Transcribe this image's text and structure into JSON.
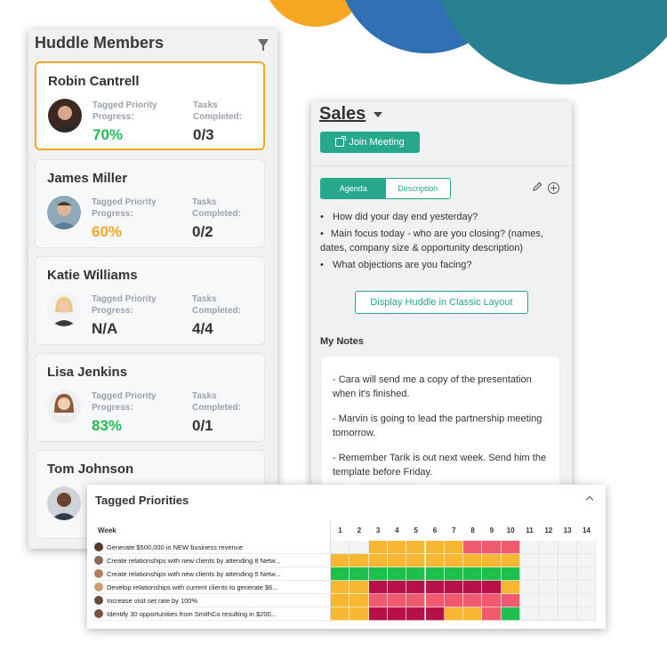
{
  "colors": {
    "accent": "#26a88c",
    "selected_border": "#f5a623",
    "good": "#27b855",
    "warn": "#f5a623"
  },
  "members": {
    "title": "Huddle Members",
    "cards": [
      {
        "name": "Robin Cantrell",
        "priority_label_1": "Tagged Priority",
        "priority_label_2": "Progress:",
        "priority_value": "70%",
        "tasks_label_1": "Tasks",
        "tasks_label_2": "Completed:",
        "tasks_value": "0/3"
      },
      {
        "name": "James Miller",
        "priority_label_1": "Tagged Priority",
        "priority_label_2": "Progress:",
        "priority_value": "60%",
        "tasks_label_1": "Tasks",
        "tasks_label_2": "Completed:",
        "tasks_value": "0/2"
      },
      {
        "name": "Katie Williams",
        "priority_label_1": "Tagged Priority",
        "priority_label_2": "Progress:",
        "priority_value": "N/A",
        "tasks_label_1": "Tasks",
        "tasks_label_2": "Completed:",
        "tasks_value": "4/4"
      },
      {
        "name": "Lisa Jenkins",
        "priority_label_1": "Tagged Priority",
        "priority_label_2": "Progress:",
        "priority_value": "83%",
        "tasks_label_1": "Tasks",
        "tasks_label_2": "Completed:",
        "tasks_value": "0/1"
      },
      {
        "name": "Tom Johnson"
      }
    ]
  },
  "sales": {
    "title": "Sales",
    "join_label": "Join Meeting",
    "tabs": [
      "Agenda",
      "Description"
    ],
    "agenda": [
      "How did your day end yesterday?",
      "Main focus today - who are you closing? (names, dates, company size & opportunity description)",
      "What objections are you facing?"
    ],
    "classic_label": "Display Huddle in Classic Layout",
    "notes_label": "My Notes",
    "notes": [
      "- Cara will send me a copy of the presentation when it's finished.",
      "- Marvin is going to lead the partnership meeting tomorrow.",
      "- Remember Tarik is out next week. Send him the template before Friday."
    ]
  },
  "priorities": {
    "title": "Tagged Priorities",
    "week_label": "Week",
    "weeks": [
      "1",
      "2",
      "3",
      "4",
      "5",
      "6",
      "7",
      "8",
      "9",
      "10",
      "11",
      "12",
      "13",
      "14"
    ],
    "rows": [
      {
        "label": "Generate $500,000 in NEW business revenue",
        "cells": [
          "empty",
          "empty",
          "orange",
          "orange",
          "orange",
          "orange",
          "orange",
          "pink",
          "pink",
          "pink",
          "empty",
          "empty",
          "empty",
          "empty"
        ]
      },
      {
        "label": "Create relationships with new clients by attending 8 Netw...",
        "cells": [
          "orange",
          "orange",
          "orange",
          "orange",
          "orange",
          "orange",
          "orange",
          "orange",
          "orange",
          "orange",
          "empty",
          "empty",
          "empty",
          "empty"
        ]
      },
      {
        "label": "Create relationships with new clients by attending 5 Netw...",
        "cells": [
          "green",
          "green",
          "green",
          "green",
          "green",
          "green",
          "green",
          "green",
          "green",
          "green",
          "empty",
          "empty",
          "empty",
          "empty"
        ]
      },
      {
        "label": "Develop relationships with current clients to generate $6...",
        "cells": [
          "orange",
          "orange",
          "crimson",
          "crimson",
          "crimson",
          "crimson",
          "crimson",
          "crimson",
          "crimson",
          "orange",
          "empty",
          "empty",
          "empty",
          "empty"
        ]
      },
      {
        "label": "Increase visit set rate by 100%",
        "cells": [
          "orange",
          "orange",
          "pink",
          "pink",
          "pink",
          "pink",
          "pink",
          "pink",
          "pink",
          "pink",
          "empty",
          "empty",
          "empty",
          "empty"
        ]
      },
      {
        "label": "Identify 30 opportunities from SmithCo resulting in $200...",
        "cells": [
          "orange",
          "orange",
          "crimson",
          "crimson",
          "crimson",
          "crimson",
          "orange",
          "orange",
          "pink",
          "green",
          "empty",
          "empty",
          "empty",
          "empty"
        ]
      }
    ]
  }
}
